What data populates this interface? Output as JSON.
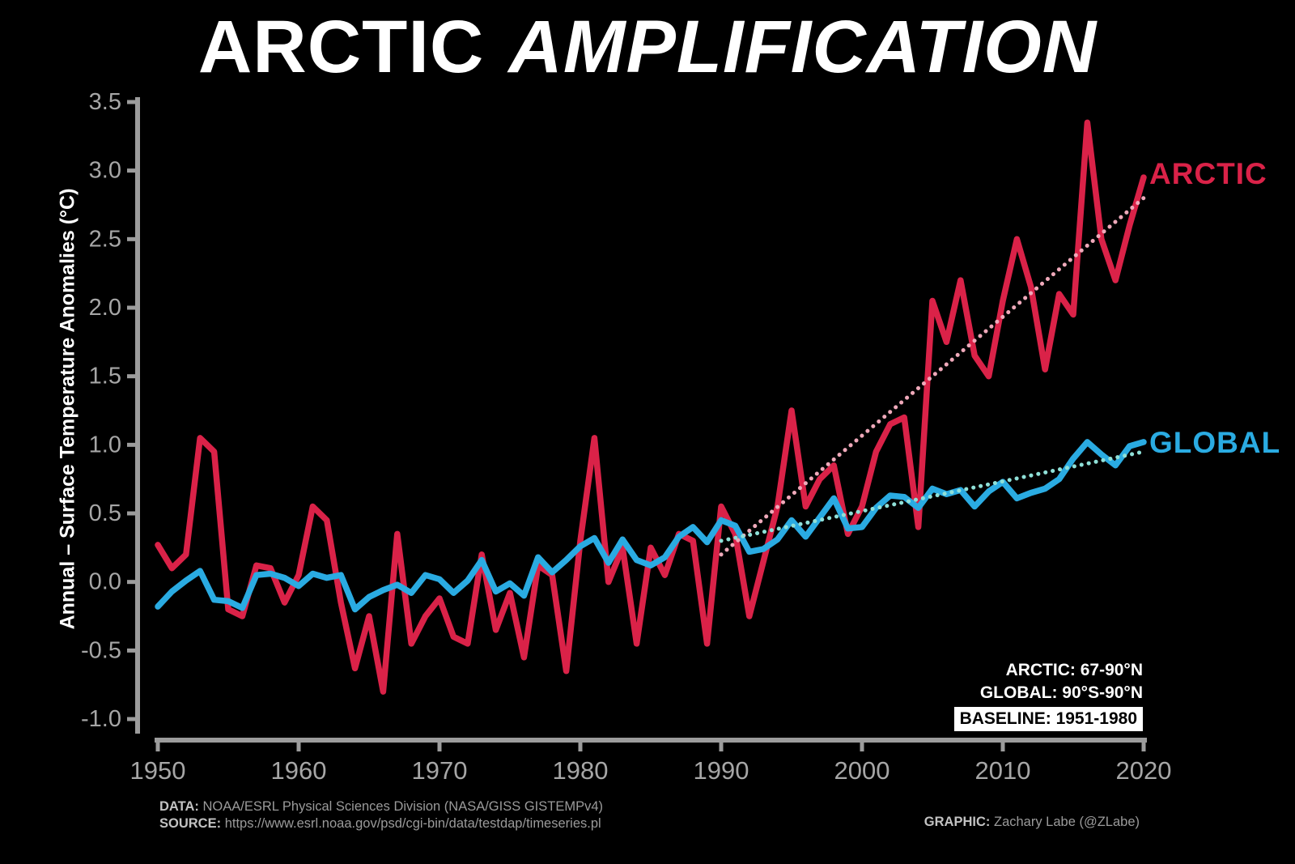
{
  "title": {
    "part1": "ARCTIC",
    "part2": "AMPLIFICATION"
  },
  "y_axis_label": "Annual – Surface Temperature Anomalies (°C)",
  "series_labels": {
    "arctic": "ARCTIC",
    "global": "GLOBAL"
  },
  "annotations": {
    "arctic_region": "ARCTIC: 67-90°N",
    "global_region": "GLOBAL: 90°S-90°N",
    "baseline": "BASELINE: 1951-1980"
  },
  "footer": {
    "data_label": "DATA:",
    "data_text": "NOAA/ESRL Physical Sciences Division (NASA/GISS GISTEMPv4)",
    "source_label": "SOURCE:",
    "source_text": "https://www.esrl.noaa.gov/psd/cgi-bin/data/testdap/timeseries.pl",
    "graphic_label": "GRAPHIC:",
    "graphic_text": "Zachary Labe (@ZLabe)"
  },
  "colors": {
    "arctic": "#da2248",
    "global": "#2aabe2",
    "arctic_trend": "#efa9ba",
    "global_trend": "#8fe0d8",
    "axis": "#9c9c9c",
    "tick_text": "#a6a6a6",
    "background": "#000000",
    "title_text": "#ffffff"
  },
  "chart_data": {
    "type": "line",
    "title": "ARCTIC AMPLIFICATION",
    "xlabel": "",
    "ylabel": "Annual – Surface Temperature Anomalies (°C)",
    "xlim": [
      1950,
      2020
    ],
    "ylim": [
      -1.0,
      3.5
    ],
    "x_ticks": [
      1950,
      1960,
      1970,
      1980,
      1990,
      2000,
      2010,
      2020
    ],
    "y_ticks": [
      3.5,
      3.0,
      2.5,
      2.0,
      1.5,
      1.0,
      0.5,
      0.0,
      -0.5,
      -1.0
    ],
    "grid": false,
    "legend_position": "right-of-lines",
    "x": [
      1950,
      1951,
      1952,
      1953,
      1954,
      1955,
      1956,
      1957,
      1958,
      1959,
      1960,
      1961,
      1962,
      1963,
      1964,
      1965,
      1966,
      1967,
      1968,
      1969,
      1970,
      1971,
      1972,
      1973,
      1974,
      1975,
      1976,
      1977,
      1978,
      1979,
      1980,
      1981,
      1982,
      1983,
      1984,
      1985,
      1986,
      1987,
      1988,
      1989,
      1990,
      1991,
      1992,
      1993,
      1994,
      1995,
      1996,
      1997,
      1998,
      1999,
      2000,
      2001,
      2002,
      2003,
      2004,
      2005,
      2006,
      2007,
      2008,
      2009,
      2010,
      2011,
      2012,
      2013,
      2014,
      2015,
      2016,
      2017,
      2018,
      2019,
      2020
    ],
    "series": [
      {
        "name": "ARCTIC",
        "color_key": "arctic",
        "values": [
          0.27,
          0.1,
          0.2,
          1.05,
          0.95,
          -0.2,
          -0.25,
          0.12,
          0.1,
          -0.15,
          0.05,
          0.55,
          0.45,
          -0.15,
          -0.63,
          -0.25,
          -0.8,
          0.35,
          -0.45,
          -0.25,
          -0.12,
          -0.4,
          -0.45,
          0.2,
          -0.35,
          -0.08,
          -0.55,
          0.12,
          0.05,
          -0.65,
          0.3,
          1.05,
          0.0,
          0.25,
          -0.45,
          0.25,
          0.05,
          0.35,
          0.3,
          -0.45,
          0.55,
          0.35,
          -0.25,
          0.15,
          0.55,
          1.25,
          0.55,
          0.75,
          0.85,
          0.35,
          0.55,
          0.95,
          1.15,
          1.2,
          0.4,
          2.05,
          1.75,
          2.2,
          1.65,
          1.5,
          2.05,
          2.5,
          2.15,
          1.55,
          2.1,
          1.95,
          3.35,
          2.5,
          2.2,
          2.6,
          2.95
        ]
      },
      {
        "name": "GLOBAL",
        "color_key": "global",
        "values": [
          -0.18,
          -0.07,
          0.01,
          0.08,
          -0.13,
          -0.14,
          -0.19,
          0.05,
          0.06,
          0.03,
          -0.03,
          0.06,
          0.03,
          0.05,
          -0.2,
          -0.11,
          -0.06,
          -0.02,
          -0.08,
          0.05,
          0.02,
          -0.08,
          0.01,
          0.16,
          -0.07,
          -0.01,
          -0.1,
          0.18,
          0.07,
          0.16,
          0.26,
          0.32,
          0.14,
          0.31,
          0.16,
          0.12,
          0.18,
          0.33,
          0.4,
          0.29,
          0.45,
          0.41,
          0.22,
          0.24,
          0.31,
          0.45,
          0.33,
          0.47,
          0.61,
          0.39,
          0.4,
          0.54,
          0.63,
          0.62,
          0.54,
          0.68,
          0.64,
          0.67,
          0.55,
          0.66,
          0.73,
          0.61,
          0.65,
          0.68,
          0.75,
          0.9,
          1.02,
          0.93,
          0.85,
          0.99,
          1.02
        ]
      }
    ],
    "trend_lines": [
      {
        "name": "ARCTIC trend",
        "style": "dotted",
        "color_key": "arctic_trend",
        "x": [
          1990,
          2020
        ],
        "values": [
          0.2,
          2.8
        ]
      },
      {
        "name": "GLOBAL trend",
        "style": "dotted",
        "color_key": "global_trend",
        "x": [
          1990,
          2020
        ],
        "values": [
          0.3,
          0.95
        ]
      }
    ]
  }
}
